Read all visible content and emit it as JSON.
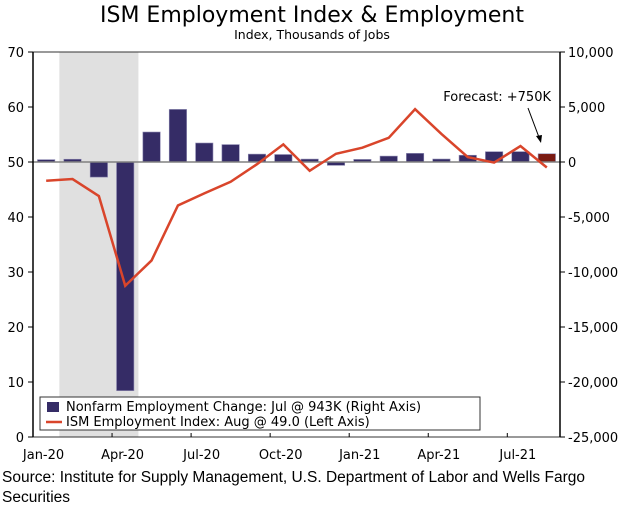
{
  "chart_data": {
    "type": "bar+line",
    "title": "ISM Employment Index & Employment",
    "subtitle": "Index, Thousands of Jobs",
    "categories": [
      "Jan-20",
      "Feb-20",
      "Mar-20",
      "Apr-20",
      "May-20",
      "Jun-20",
      "Jul-20",
      "Aug-20",
      "Sep-20",
      "Oct-20",
      "Nov-20",
      "Dec-20",
      "Jan-21",
      "Feb-21",
      "Mar-21",
      "Apr-21",
      "May-21",
      "Jun-21",
      "Jul-21",
      "Aug-21"
    ],
    "x_tick_labels": [
      "Jan-20",
      "Apr-20",
      "Jul-20",
      "Oct-20",
      "Jan-21",
      "Apr-21",
      "Jul-21"
    ],
    "left_axis": {
      "range": [
        0,
        70
      ],
      "ticks": [
        "0",
        "10",
        "20",
        "30",
        "40",
        "50",
        "60",
        "70"
      ]
    },
    "right_axis": {
      "range": [
        -25000,
        10000
      ],
      "ticks": [
        "-25,000",
        "-20,000",
        "-15,000",
        "-10,000",
        "-5,000",
        "0",
        "5,000",
        "10,000"
      ]
    },
    "recession_shading": {
      "from": "Feb-20",
      "to": "Apr-20",
      "color": "#e0e0e0"
    },
    "series": [
      {
        "name": "Nonfarm Employment Change: Jul @ 943K (Right Axis)",
        "type": "bar",
        "axis": "right",
        "color": "#352c66",
        "values": [
          214,
          251,
          -1373,
          -20787,
          2725,
          4781,
          1726,
          1583,
          716,
          680,
          264,
          -306,
          233,
          536,
          785,
          269,
          614,
          938,
          943,
          750
        ]
      },
      {
        "name": "ISM Employment Index: Aug @ 49.0 (Left Axis)",
        "type": "line",
        "axis": "left",
        "color": "#d9452b",
        "values": [
          46.6,
          46.9,
          43.8,
          27.5,
          32.1,
          42.1,
          44.3,
          46.4,
          49.6,
          53.2,
          48.4,
          51.5,
          52.6,
          54.4,
          59.6,
          55.1,
          50.9,
          49.9,
          52.9,
          49.0
        ]
      }
    ],
    "forecast": {
      "category": "Aug-21",
      "label": "Forecast: +750K",
      "color": "#7a1a12"
    },
    "legend_placement": "bottom-left",
    "grid": false
  },
  "source": "Source: Institute for Supply Management, U.S. Department of Labor and Wells Fargo Securities"
}
